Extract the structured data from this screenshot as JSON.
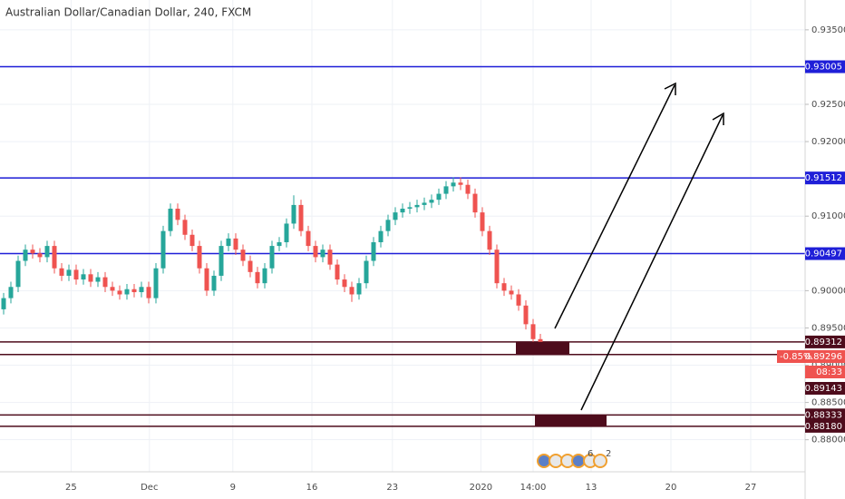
{
  "chart_data": {
    "type": "candlestick",
    "title": "Australian Dollar/Canadian Dollar, 240, FXCM",
    "up_color": "#26a69a",
    "down_color": "#ef5350",
    "grid": true,
    "ylim": [
      0.8757,
      0.939
    ],
    "yticks": [
      {
        "value": 0.88,
        "label": "0.88000"
      },
      {
        "value": 0.885,
        "label": "0.88500"
      },
      {
        "value": 0.89,
        "label": "0.89000"
      },
      {
        "value": 0.895,
        "label": "0.89500"
      },
      {
        "value": 0.9,
        "label": "0.90000"
      },
      {
        "value": 0.905,
        "label": "0.90500"
      },
      {
        "value": 0.91,
        "label": "0.91000"
      },
      {
        "value": 0.915,
        "label": "0.91500"
      },
      {
        "value": 0.92,
        "label": "0.92000"
      },
      {
        "value": 0.925,
        "label": "0.92500"
      },
      {
        "value": 0.93,
        "label": "0.93000"
      },
      {
        "value": 0.935,
        "label": "0.93500"
      }
    ],
    "xlim": [
      -0.5,
      110.5
    ],
    "xticks": [
      {
        "value": 9.3,
        "label": "25"
      },
      {
        "value": 20.1,
        "label": "Dec"
      },
      {
        "value": 31.6,
        "label": "9"
      },
      {
        "value": 42.5,
        "label": "16"
      },
      {
        "value": 53.6,
        "label": "23"
      },
      {
        "value": 65.8,
        "label": "2020"
      },
      {
        "value": 73,
        "label": "14:00"
      },
      {
        "value": 81,
        "label": "13"
      },
      {
        "value": 92,
        "label": "20"
      },
      {
        "value": 103,
        "label": "27"
      }
    ],
    "candles": [
      [
        0.8975,
        0.8997,
        0.8968,
        0.899
      ],
      [
        0.899,
        0.9012,
        0.8983,
        0.9005
      ],
      [
        0.9005,
        0.9047,
        0.8998,
        0.904
      ],
      [
        0.904,
        0.9062,
        0.9033,
        0.9055
      ],
      [
        0.9055,
        0.9062,
        0.9043,
        0.905
      ],
      [
        0.905,
        0.9057,
        0.9038,
        0.9045
      ],
      [
        0.9045,
        0.9067,
        0.9038,
        0.906
      ],
      [
        0.906,
        0.9067,
        0.9023,
        0.903
      ],
      [
        0.903,
        0.9037,
        0.9013,
        0.902
      ],
      [
        0.902,
        0.9035,
        0.9013,
        0.9028
      ],
      [
        0.9028,
        0.9035,
        0.9008,
        0.9015
      ],
      [
        0.9015,
        0.9029,
        0.9008,
        0.9022
      ],
      [
        0.9022,
        0.9029,
        0.9005,
        0.9012
      ],
      [
        0.9012,
        0.9025,
        0.9005,
        0.9018
      ],
      [
        0.9018,
        0.9025,
        0.8998,
        0.9005
      ],
      [
        0.9005,
        0.9012,
        0.8993,
        0.9
      ],
      [
        0.9,
        0.9007,
        0.8988,
        0.8995
      ],
      [
        0.8995,
        0.9009,
        0.8988,
        0.9002
      ],
      [
        0.9002,
        0.9009,
        0.8991,
        0.8998
      ],
      [
        0.8998,
        0.9012,
        0.8991,
        0.9005
      ],
      [
        0.9005,
        0.9012,
        0.8983,
        0.899
      ],
      [
        0.899,
        0.9037,
        0.8983,
        0.903
      ],
      [
        0.903,
        0.9087,
        0.9023,
        0.908
      ],
      [
        0.908,
        0.9117,
        0.9073,
        0.911
      ],
      [
        0.911,
        0.9117,
        0.9088,
        0.9095
      ],
      [
        0.9095,
        0.9102,
        0.9068,
        0.9075
      ],
      [
        0.9075,
        0.9082,
        0.9053,
        0.906
      ],
      [
        0.906,
        0.9067,
        0.9023,
        0.903
      ],
      [
        0.903,
        0.9037,
        0.8993,
        0.9
      ],
      [
        0.9,
        0.9027,
        0.8993,
        0.902
      ],
      [
        0.902,
        0.9067,
        0.9013,
        0.906
      ],
      [
        0.906,
        0.9077,
        0.9053,
        0.907
      ],
      [
        0.907,
        0.9077,
        0.9048,
        0.9055
      ],
      [
        0.9055,
        0.9062,
        0.9033,
        0.904
      ],
      [
        0.904,
        0.9047,
        0.9018,
        0.9025
      ],
      [
        0.9025,
        0.9032,
        0.9003,
        0.901
      ],
      [
        0.901,
        0.9037,
        0.9003,
        0.903
      ],
      [
        0.903,
        0.9067,
        0.9023,
        0.906
      ],
      [
        0.906,
        0.9072,
        0.9053,
        0.9065
      ],
      [
        0.9065,
        0.9097,
        0.9058,
        0.909
      ],
      [
        0.909,
        0.9128,
        0.9083,
        0.9115
      ],
      [
        0.9115,
        0.9122,
        0.9073,
        0.908
      ],
      [
        0.908,
        0.9087,
        0.9053,
        0.906
      ],
      [
        0.906,
        0.9067,
        0.9038,
        0.9045
      ],
      [
        0.9045,
        0.9062,
        0.9038,
        0.9055
      ],
      [
        0.9055,
        0.9062,
        0.9028,
        0.9035
      ],
      [
        0.9035,
        0.9042,
        0.9008,
        0.9015
      ],
      [
        0.9015,
        0.9022,
        0.8998,
        0.9005
      ],
      [
        0.9005,
        0.9012,
        0.8985,
        0.8995
      ],
      [
        0.8995,
        0.9017,
        0.8988,
        0.901
      ],
      [
        0.901,
        0.9047,
        0.9003,
        0.904
      ],
      [
        0.904,
        0.9072,
        0.9033,
        0.9065
      ],
      [
        0.9065,
        0.9087,
        0.9058,
        0.908
      ],
      [
        0.908,
        0.9102,
        0.9073,
        0.9095
      ],
      [
        0.9095,
        0.9112,
        0.9088,
        0.9105
      ],
      [
        0.9105,
        0.9117,
        0.9098,
        0.911
      ],
      [
        0.911,
        0.9119,
        0.9103,
        0.9112
      ],
      [
        0.9112,
        0.9122,
        0.9105,
        0.9115
      ],
      [
        0.9115,
        0.9125,
        0.9108,
        0.9118
      ],
      [
        0.9118,
        0.9129,
        0.9111,
        0.9122
      ],
      [
        0.9122,
        0.9137,
        0.9115,
        0.913
      ],
      [
        0.913,
        0.9147,
        0.9123,
        0.914
      ],
      [
        0.914,
        0.9152,
        0.9133,
        0.9145
      ],
      [
        0.9145,
        0.9152,
        0.9135,
        0.9142
      ],
      [
        0.9142,
        0.9149,
        0.9123,
        0.913
      ],
      [
        0.913,
        0.9137,
        0.9098,
        0.9105
      ],
      [
        0.9105,
        0.9112,
        0.9073,
        0.908
      ],
      [
        0.908,
        0.9087,
        0.9048,
        0.9055
      ],
      [
        0.9055,
        0.9062,
        0.9003,
        0.901
      ],
      [
        0.901,
        0.9017,
        0.8993,
        0.9
      ],
      [
        0.9,
        0.9007,
        0.8988,
        0.8995
      ],
      [
        0.8995,
        0.9002,
        0.8973,
        0.898
      ],
      [
        0.898,
        0.8987,
        0.8948,
        0.8955
      ],
      [
        0.8955,
        0.8962,
        0.8928,
        0.8935
      ],
      [
        0.8935,
        0.8942,
        0.8926,
        0.893
      ]
    ],
    "levels": [
      {
        "value": 0.93005,
        "label": "0.93005",
        "color": "#1f1fd8"
      },
      {
        "value": 0.91512,
        "label": "0.91512",
        "color": "#1f1fd8"
      },
      {
        "value": 0.90497,
        "label": "0.90497",
        "color": "#1f1fd8"
      },
      {
        "value": 0.89312,
        "label": "0.89312",
        "color": "#4e0c1c"
      },
      {
        "value": 0.89143,
        "label": "0.89143",
        "color": "#4e0c1c"
      },
      {
        "value": 0.88333,
        "label": "0.88333",
        "color": "#4e0c1c"
      },
      {
        "value": 0.8818,
        "label": "0.88180",
        "color": "#4e0c1c"
      }
    ],
    "last_price": 0.89296,
    "change_label": "-0.85%",
    "countdown": "08:33",
    "event_counts": [
      6,
      2
    ]
  }
}
